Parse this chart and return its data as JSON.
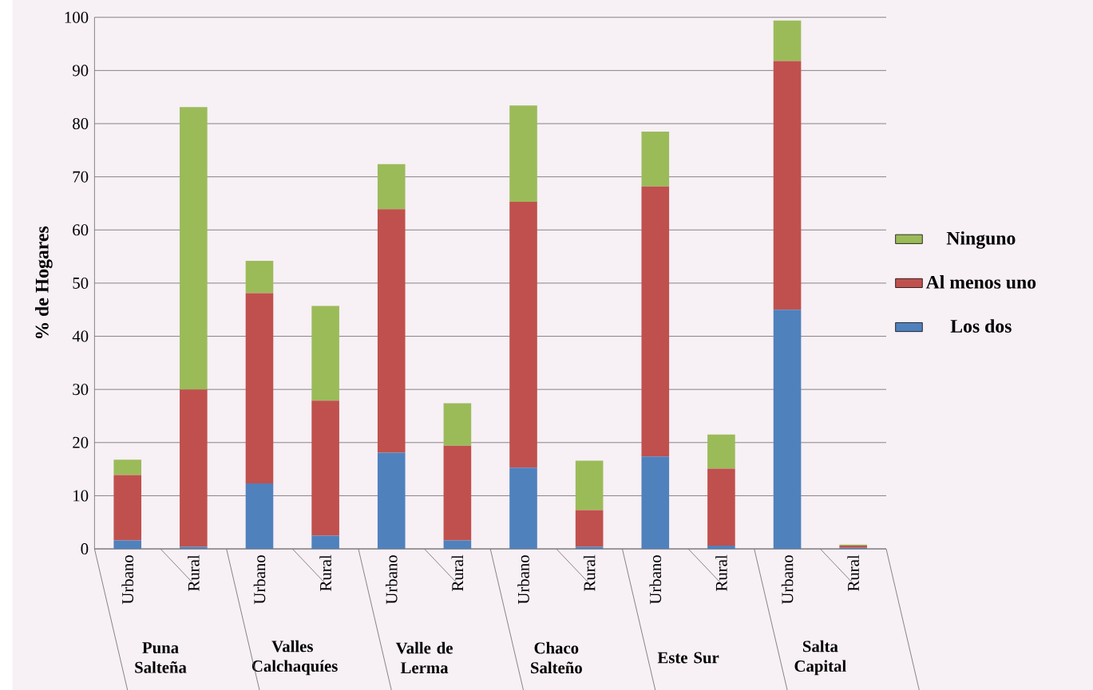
{
  "chart_data": {
    "type": "bar",
    "stacked": true,
    "ylabel": "% de Hogares",
    "categories": [
      "Urbano",
      "Rural",
      "Urbano",
      "Rural",
      "Urbano",
      "Rural",
      "Urbano",
      "Rural",
      "Urbano",
      "Rural",
      "Urbano",
      "Rural"
    ],
    "annotations": [
      "Puna Salteña",
      "Valles Calchaquíes",
      "Valle de Lerma",
      "Chaco Salteño",
      "Este Sur",
      "Salta Capital"
    ],
    "series": [
      {
        "name": "Los dos",
        "color": "#4f81bd",
        "values": [
          1.6,
          0.4,
          12.3,
          2.5,
          18.1,
          1.6,
          15.3,
          0.4,
          17.4,
          0.6,
          45.0,
          0.2
        ]
      },
      {
        "name": "Al menos uno",
        "color": "#c0504d",
        "values": [
          12.3,
          29.6,
          35.8,
          25.4,
          45.8,
          17.8,
          50.0,
          6.9,
          50.8,
          14.5,
          46.8,
          0.4
        ]
      },
      {
        "name": "Ninguno",
        "color": "#9bbb59",
        "values": [
          2.9,
          53.1,
          6.1,
          17.8,
          8.5,
          8.0,
          18.1,
          9.3,
          10.3,
          6.4,
          7.6,
          0.2
        ]
      }
    ],
    "ylim": [
      0,
      100
    ],
    "yticks": [
      0,
      10,
      20,
      30,
      40,
      50,
      60,
      70,
      80,
      90,
      100
    ],
    "grid": "y",
    "legend": "right"
  }
}
